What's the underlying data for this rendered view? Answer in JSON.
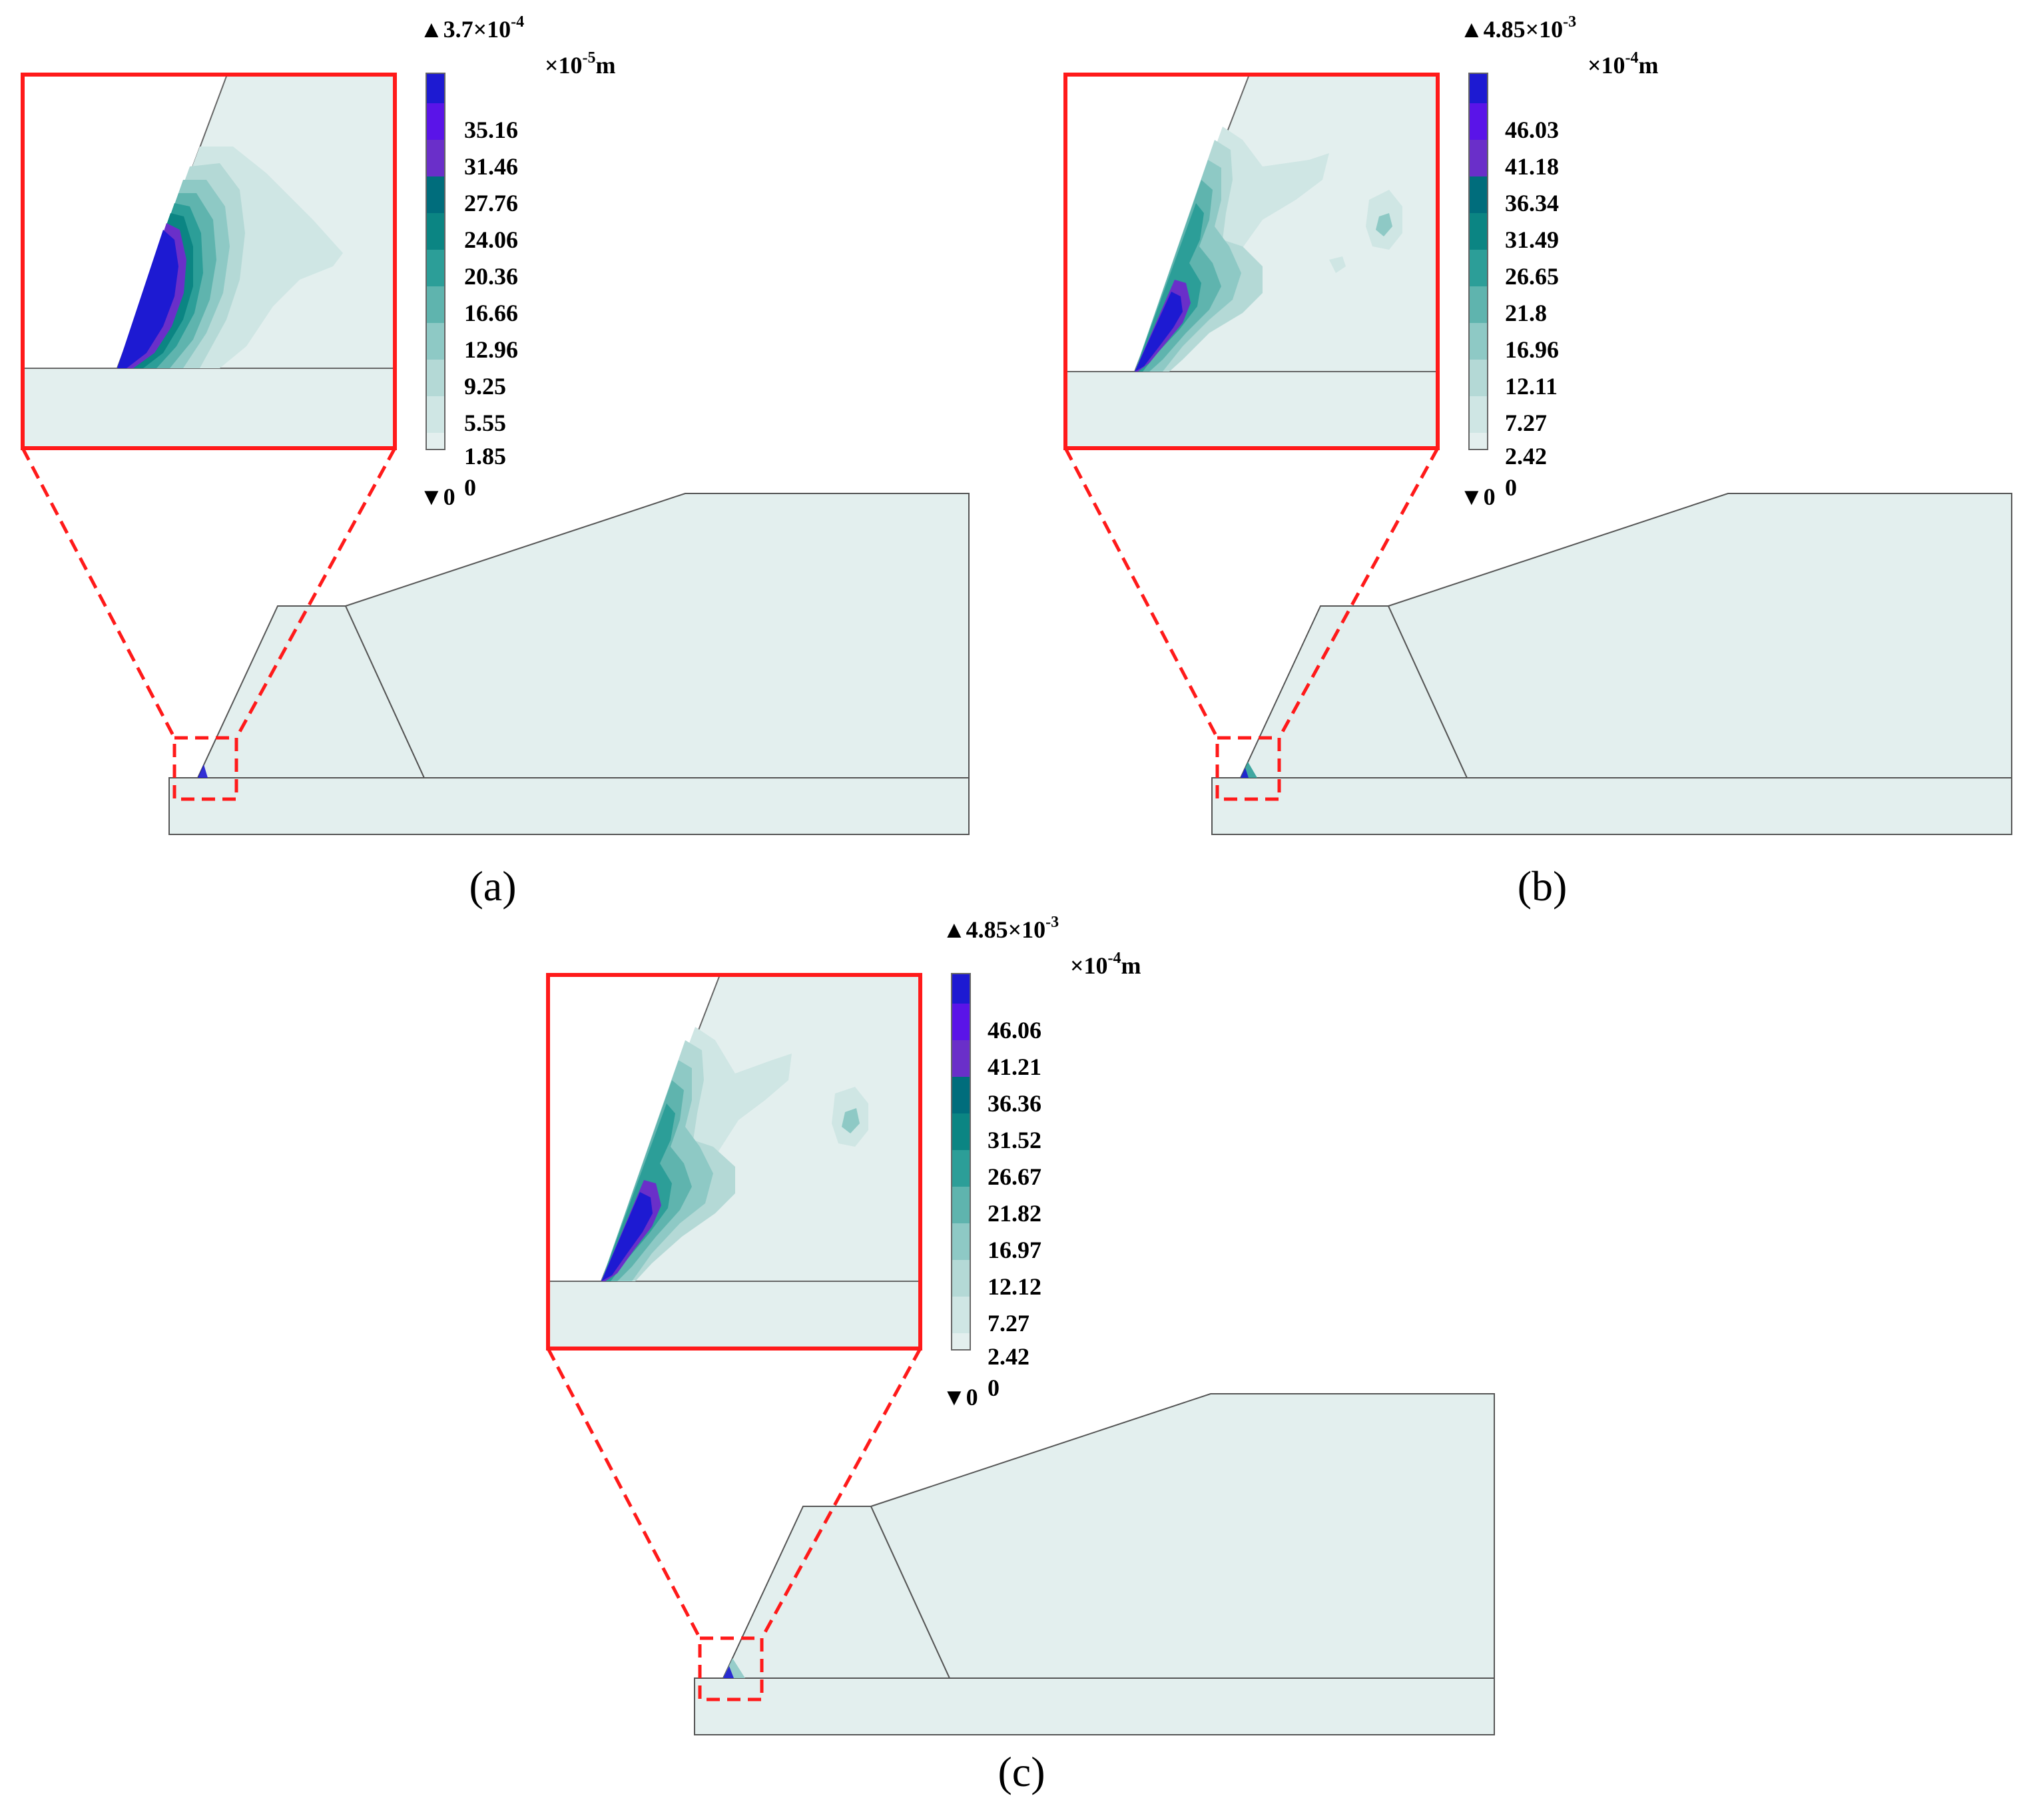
{
  "colors": {
    "background_fill": "#e3efee",
    "outline": "#555555",
    "highlight": "#ff1a1a",
    "scale_bands": [
      "#e3efee",
      "#cfe6e4",
      "#b4d9d6",
      "#8ec9c5",
      "#5fb4ae",
      "#2c9e98",
      "#0b8583",
      "#006d7c",
      "#6a2fc9",
      "#5a14e8",
      "#1d1ad2"
    ]
  },
  "panels": [
    {
      "id": "a",
      "caption": "(a)",
      "max_value": "3.7×10",
      "max_exponent": "-4",
      "min_value": "0",
      "unit_prefix": "×10",
      "unit_exponent": "-5",
      "unit_suffix": "m",
      "legend_ticks": [
        "35.16",
        "31.46",
        "27.76",
        "24.06",
        "20.36",
        "16.66",
        "12.96",
        "9.25",
        "5.55",
        "1.85",
        "0"
      ]
    },
    {
      "id": "b",
      "caption": "(b)",
      "max_value": "4.85×10",
      "max_exponent": "-3",
      "min_value": "0",
      "unit_prefix": "×10",
      "unit_exponent": "-4",
      "unit_suffix": "m",
      "legend_ticks": [
        "46.03",
        "41.18",
        "36.34",
        "31.49",
        "26.65",
        "21.8",
        "16.96",
        "12.11",
        "7.27",
        "2.42",
        "0"
      ]
    },
    {
      "id": "c",
      "caption": "(c)",
      "max_value": "4.85×10",
      "max_exponent": "-3",
      "min_value": "0",
      "unit_prefix": "×10",
      "unit_exponent": "-4",
      "unit_suffix": "m",
      "legend_ticks": [
        "46.06",
        "41.21",
        "36.36",
        "31.52",
        "26.67",
        "21.82",
        "16.97",
        "12.12",
        "7.27",
        "2.42",
        "0"
      ]
    }
  ]
}
